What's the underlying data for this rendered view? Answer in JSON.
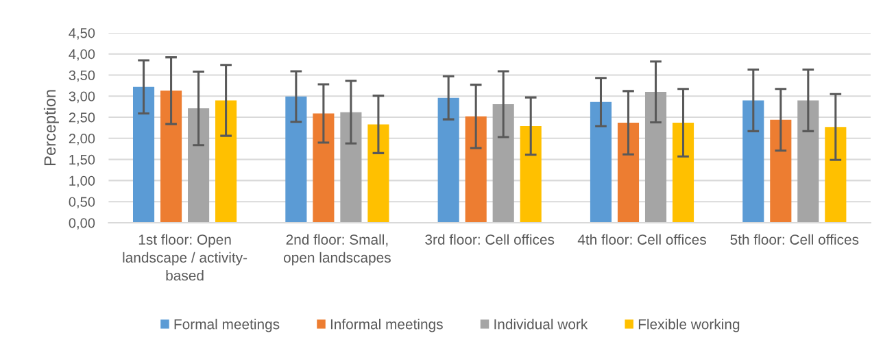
{
  "chart_data": {
    "type": "bar",
    "categories": [
      "1st floor: Open landscape / activity-based",
      "2nd floor: Small, open landscapes",
      "3rd floor: Cell offices",
      "4th floor: Cell offices",
      "5th floor: Cell offices"
    ],
    "series": [
      {
        "name": "Formal meetings",
        "color": "#5b9bd5",
        "values": [
          3.22,
          2.99,
          2.96,
          2.86,
          2.9
        ],
        "errors": [
          0.63,
          0.6,
          0.51,
          0.57,
          0.73
        ]
      },
      {
        "name": "Informal meetings",
        "color": "#ed7d31",
        "values": [
          3.13,
          2.59,
          2.52,
          2.37,
          2.44
        ],
        "errors": [
          0.79,
          0.69,
          0.75,
          0.75,
          0.73
        ]
      },
      {
        "name": "Individual work",
        "color": "#a5a5a5",
        "values": [
          2.71,
          2.62,
          2.81,
          3.1,
          2.9
        ],
        "errors": [
          0.87,
          0.74,
          0.78,
          0.72,
          0.73
        ]
      },
      {
        "name": "Flexible working",
        "color": "#ffc000",
        "values": [
          2.9,
          2.33,
          2.29,
          2.37,
          2.27
        ],
        "errors": [
          0.84,
          0.68,
          0.68,
          0.8,
          0.78
        ]
      }
    ],
    "ylabel": "Perception",
    "ylim": [
      0,
      4.5
    ],
    "yticks": [
      {
        "value": 0,
        "label": "0,00"
      },
      {
        "value": 0.5,
        "label": "0,50"
      },
      {
        "value": 1,
        "label": "1,00"
      },
      {
        "value": 1.5,
        "label": "1,50"
      },
      {
        "value": 2,
        "label": "2,00"
      },
      {
        "value": 2.5,
        "label": "2,50"
      },
      {
        "value": 3,
        "label": "3,00"
      },
      {
        "value": 3.5,
        "label": "3,50"
      },
      {
        "value": 4,
        "label": "4,00"
      },
      {
        "value": 4.5,
        "label": "4,50"
      }
    ],
    "grid": "y",
    "legend": "bottom"
  }
}
